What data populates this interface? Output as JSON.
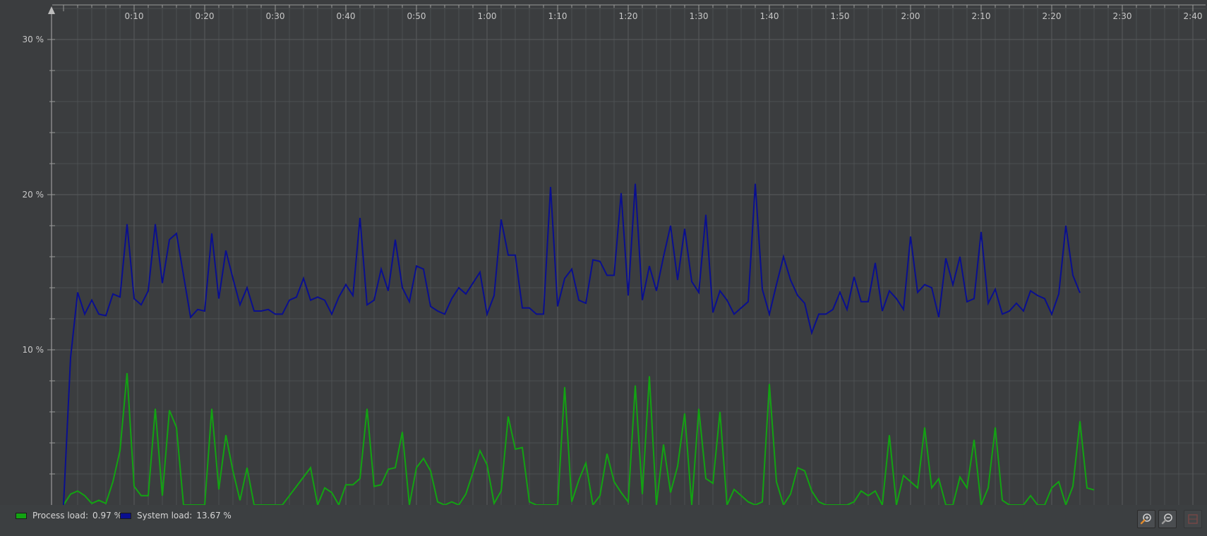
{
  "chart_data": {
    "type": "line",
    "x_unit": "elapsed time (m:ss)",
    "x_range": [
      0,
      160
    ],
    "y_range": [
      0,
      30
    ],
    "x_ticks": [
      {
        "value": 10,
        "label": "0:10"
      },
      {
        "value": 20,
        "label": "0:20"
      },
      {
        "value": 30,
        "label": "0:30"
      },
      {
        "value": 40,
        "label": "0:40"
      },
      {
        "value": 50,
        "label": "0:50"
      },
      {
        "value": 60,
        "label": "1:00"
      },
      {
        "value": 70,
        "label": "1:10"
      },
      {
        "value": 80,
        "label": "1:20"
      },
      {
        "value": 90,
        "label": "1:30"
      },
      {
        "value": 100,
        "label": "1:40"
      },
      {
        "value": 110,
        "label": "1:50"
      },
      {
        "value": 120,
        "label": "2:00"
      },
      {
        "value": 130,
        "label": "2:10"
      },
      {
        "value": 140,
        "label": "2:20"
      },
      {
        "value": 150,
        "label": "2:30"
      },
      {
        "value": 160,
        "label": "2:40"
      }
    ],
    "y_ticks": [
      {
        "value": 10,
        "label": "10 %"
      },
      {
        "value": 20,
        "label": "20 %"
      },
      {
        "value": 30,
        "label": "30 %"
      }
    ],
    "grid": true,
    "legend_position": "bottom-left",
    "sample_interval_s": 1,
    "series": [
      {
        "name": "Process load:",
        "current_value": "0.97 %",
        "color": "#12a312",
        "values": [
          0.0,
          0.7,
          0.9,
          0.6,
          0.1,
          0.3,
          0.1,
          1.5,
          3.5,
          8.5,
          1.2,
          0.6,
          0.6,
          6.2,
          0.6,
          6.1,
          5.0,
          0.0,
          0.0,
          0.0,
          0.0,
          6.2,
          1.0,
          4.5,
          2.2,
          0.3,
          2.4,
          0.0,
          0.0,
          0.0,
          0.0,
          0.0,
          0.6,
          1.2,
          1.8,
          2.4,
          0.0,
          1.1,
          0.8,
          0.0,
          1.3,
          1.3,
          1.7,
          6.2,
          1.2,
          1.3,
          2.3,
          2.4,
          4.7,
          0.0,
          2.4,
          3.0,
          2.2,
          0.2,
          0.0,
          0.2,
          0.0,
          0.7,
          2.1,
          3.5,
          2.6,
          0.1,
          0.9,
          5.7,
          3.6,
          3.7,
          0.2,
          0.0,
          0.0,
          0.0,
          0.0,
          7.6,
          0.2,
          1.6,
          2.7,
          0.0,
          0.6,
          3.3,
          1.5,
          0.8,
          0.2,
          7.7,
          0.7,
          8.3,
          0.0,
          3.9,
          0.8,
          2.5,
          5.9,
          0.0,
          6.2,
          1.7,
          1.4,
          6.0,
          0.0,
          1.0,
          0.6,
          0.2,
          0.0,
          0.2,
          7.8,
          1.5,
          0.0,
          0.7,
          2.4,
          2.2,
          0.9,
          0.2,
          0.0,
          0.0,
          0.0,
          0.0,
          0.2,
          0.9,
          0.6,
          0.9,
          0.0,
          4.5,
          0.0,
          1.9,
          1.5,
          1.1,
          5.0,
          1.1,
          1.7,
          0.0,
          0.0,
          1.8,
          1.1,
          4.2,
          0.0,
          1.1,
          5.0,
          0.3,
          0.0,
          0.0,
          0.0,
          0.6,
          0.0,
          0.0,
          1.1,
          1.5,
          0.0,
          1.2,
          5.4,
          1.1,
          0.97
        ]
      },
      {
        "name": "System load:",
        "current_value": "13.67 %",
        "color": "#0a0f8f",
        "values": [
          0.0,
          9.5,
          13.7,
          12.3,
          13.2,
          12.3,
          12.2,
          13.6,
          13.4,
          18.1,
          13.3,
          12.9,
          13.8,
          18.1,
          14.3,
          17.1,
          17.5,
          14.8,
          12.1,
          12.6,
          12.5,
          17.5,
          13.3,
          16.4,
          14.6,
          12.9,
          14.0,
          12.5,
          12.5,
          12.6,
          12.3,
          12.3,
          13.2,
          13.4,
          14.6,
          13.2,
          13.4,
          13.2,
          12.3,
          13.4,
          14.2,
          13.5,
          18.5,
          12.9,
          13.2,
          15.2,
          13.8,
          17.1,
          14.0,
          13.1,
          15.4,
          15.2,
          12.8,
          12.5,
          12.3,
          13.3,
          14.0,
          13.6,
          14.3,
          15.0,
          12.3,
          13.5,
          18.4,
          16.1,
          16.1,
          12.7,
          12.7,
          12.3,
          12.3,
          20.5,
          12.8,
          14.6,
          15.2,
          13.2,
          13.0,
          15.8,
          15.7,
          14.8,
          14.8,
          20.1,
          13.5,
          20.7,
          13.2,
          15.4,
          13.8,
          16.0,
          18.0,
          14.5,
          17.8,
          14.4,
          13.7,
          18.7,
          12.4,
          13.8,
          13.2,
          12.3,
          12.7,
          13.1,
          20.7,
          13.9,
          12.3,
          14.2,
          16.0,
          14.5,
          13.5,
          13.0,
          11.1,
          12.3,
          12.3,
          12.6,
          13.7,
          12.6,
          14.7,
          13.1,
          13.1,
          15.6,
          12.5,
          13.8,
          13.3,
          12.6,
          17.3,
          13.7,
          14.2,
          14.0,
          12.1,
          15.9,
          14.2,
          16.0,
          13.1,
          13.3,
          17.6,
          13.0,
          13.9,
          12.3,
          12.5,
          13.0,
          12.5,
          13.8,
          13.5,
          13.3,
          12.3,
          13.6,
          18.0,
          14.8,
          13.67
        ]
      }
    ]
  },
  "toolbar": {
    "zoom_in_icon": "zoom-in-magnifier-icon",
    "zoom_out_icon": "zoom-out-magnifier-icon",
    "reset_icon": "reset-zoom-icon"
  },
  "colors": {
    "background": "#3b3d3f",
    "grid": "#5a5c5e",
    "axis": "#9a9a9a"
  }
}
